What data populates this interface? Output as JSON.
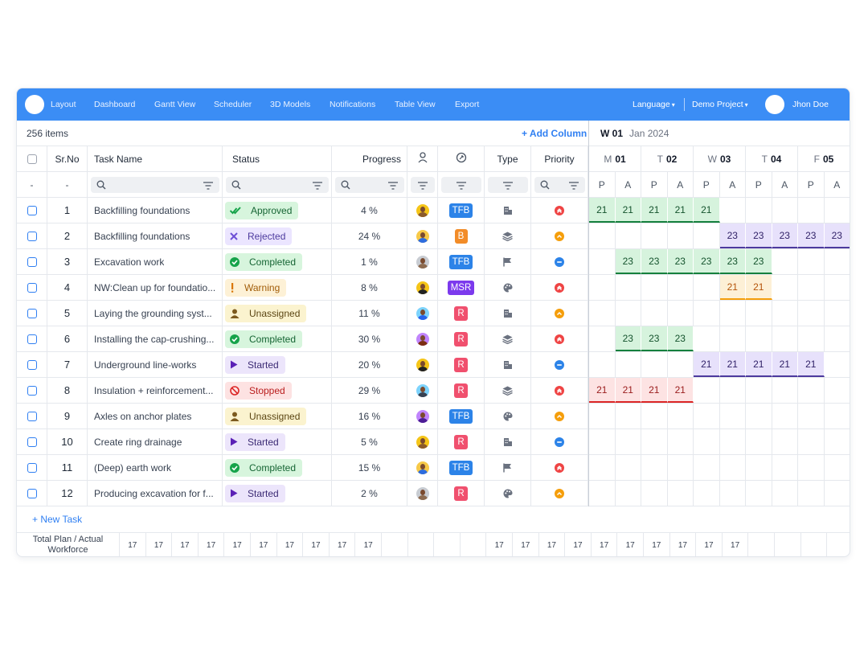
{
  "nav": {
    "items": [
      "Layout",
      "Dashboard",
      "Gantt View",
      "Scheduler",
      "3D Models",
      "Notifications",
      "Table View",
      "Export"
    ],
    "language": "Language",
    "project": "Demo Project",
    "user": "Jhon Doe"
  },
  "toolbar": {
    "items_count": "256 items",
    "add_column": "+ Add Column",
    "week": "W 01",
    "month": "Jan 2024"
  },
  "columns": {
    "srno": "Sr.No",
    "task": "Task Name",
    "status": "Status",
    "progress": "Progress",
    "type": "Type",
    "priority": "Priority",
    "dash": "-"
  },
  "days": [
    {
      "letter": "M",
      "num": "01"
    },
    {
      "letter": "T",
      "num": "02"
    },
    {
      "letter": "W",
      "num": "03"
    },
    {
      "letter": "T",
      "num": "04"
    },
    {
      "letter": "F",
      "num": "05"
    }
  ],
  "shifts": [
    "P",
    "A",
    "P",
    "A",
    "P",
    "A",
    "P",
    "A",
    "P",
    "A"
  ],
  "colors": {
    "accent": "#3b8df5",
    "approved": "#16a34a",
    "rejected": "#6d4fd6",
    "completed": "#16a34a",
    "warning": "#d97706",
    "unassigned": "#7c5a1e",
    "started": "#6d28d9",
    "stopped": "#dc2626"
  },
  "rows": [
    {
      "no": "1",
      "task": "Backfilling foundations",
      "status": "Approved",
      "progress": "4 %",
      "tag": "TFB",
      "type_icon": "building-icon",
      "priority": "high"
    },
    {
      "no": "2",
      "task": "Backfilling foundations",
      "status": "Rejected",
      "progress": "24 %",
      "tag": "B",
      "type_icon": "layers-icon",
      "priority": "medium"
    },
    {
      "no": "3",
      "task": "Excavation work",
      "status": "Completed",
      "progress": "1 %",
      "tag": "TFB",
      "type_icon": "flag-icon",
      "priority": "low"
    },
    {
      "no": "4",
      "task": "NW:Clean up for foundatio...",
      "status": "Warning",
      "progress": "8 %",
      "tag": "MSR",
      "type_icon": "palette-icon",
      "priority": "high"
    },
    {
      "no": "5",
      "task": "Laying the grounding syst...",
      "status": "Unassigned",
      "progress": "11 %",
      "tag": "R",
      "type_icon": "building-icon",
      "priority": "medium"
    },
    {
      "no": "6",
      "task": "Installing the cap-crushing...",
      "status": "Completed",
      "progress": "30 %",
      "tag": "R",
      "type_icon": "layers-icon",
      "priority": "high"
    },
    {
      "no": "7",
      "task": "Underground line-works",
      "status": "Started",
      "progress": "20 %",
      "tag": "R",
      "type_icon": "building-icon",
      "priority": "low"
    },
    {
      "no": "8",
      "task": "Insulation + reinforcement...",
      "status": "Stopped",
      "progress": "29 %",
      "tag": "R",
      "type_icon": "layers-icon",
      "priority": "high"
    },
    {
      "no": "9",
      "task": "Axles on anchor plates",
      "status": "Unassigned",
      "progress": "16 %",
      "tag": "TFB",
      "type_icon": "palette-icon",
      "priority": "medium"
    },
    {
      "no": "10",
      "task": "Create ring drainage",
      "status": "Started",
      "progress": "5 %",
      "tag": "R",
      "type_icon": "building-icon",
      "priority": "low"
    },
    {
      "no": "11",
      "task": "(Deep) earth work",
      "status": "Completed",
      "progress": "15 %",
      "tag": "TFB",
      "type_icon": "flag-icon",
      "priority": "high"
    },
    {
      "no": "12",
      "task": "Producing excavation for f...",
      "status": "Started",
      "progress": "2 %",
      "tag": "R",
      "type_icon": "palette-icon",
      "priority": "medium"
    }
  ],
  "gantt": [
    {
      "row": 0,
      "start": 0,
      "span": 5,
      "value": "21",
      "color": "green"
    },
    {
      "row": 1,
      "start": 5,
      "span": 5,
      "value": "23",
      "color": "purple"
    },
    {
      "row": 2,
      "start": 1,
      "span": 6,
      "value": "23",
      "color": "green"
    },
    {
      "row": 3,
      "start": 5,
      "span": 2,
      "value": "21",
      "color": "orange"
    },
    {
      "row": 5,
      "start": 1,
      "span": 3,
      "value": "23",
      "color": "green"
    },
    {
      "row": 6,
      "start": 4,
      "span": 5,
      "value": "21",
      "color": "purple"
    },
    {
      "row": 7,
      "start": 0,
      "span": 4,
      "value": "21",
      "color": "red"
    }
  ],
  "footer": {
    "label": "Total Plan / Actual Workforce",
    "value": "17"
  },
  "new_task": "+ New Task"
}
